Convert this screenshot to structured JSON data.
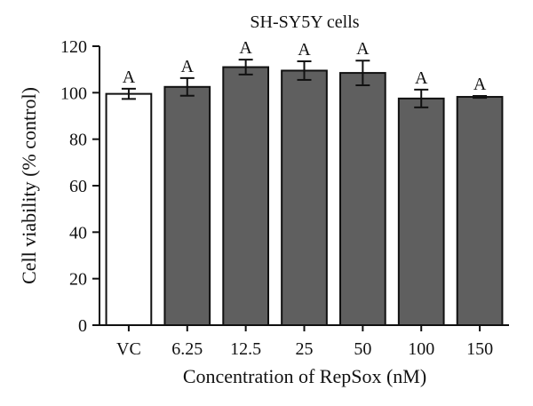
{
  "chart_data": {
    "type": "bar",
    "title": "SH-SY5Y cells",
    "xlabel": "Concentration of RepSox (nM)",
    "ylabel": "Cell viability (% control)",
    "categories": [
      "VC",
      "6.25",
      "12.5",
      "25",
      "50",
      "100",
      "150"
    ],
    "values": [
      99.5,
      102.5,
      111,
      109.5,
      108.5,
      97.5,
      98.2
    ],
    "errors": [
      2.2,
      3.8,
      3.2,
      4.0,
      5.3,
      3.8,
      0.4
    ],
    "significance": [
      "A",
      "A",
      "A",
      "A",
      "A",
      "A",
      "A"
    ],
    "ylim": [
      0,
      120
    ],
    "yticks": [
      0,
      20,
      40,
      60,
      80,
      100,
      120
    ],
    "grid": false,
    "bar_colors": [
      "#ffffff",
      "#5f5f5f",
      "#5f5f5f",
      "#5f5f5f",
      "#5f5f5f",
      "#5f5f5f",
      "#5f5f5f"
    ],
    "bar_edge_color": "#111111"
  }
}
